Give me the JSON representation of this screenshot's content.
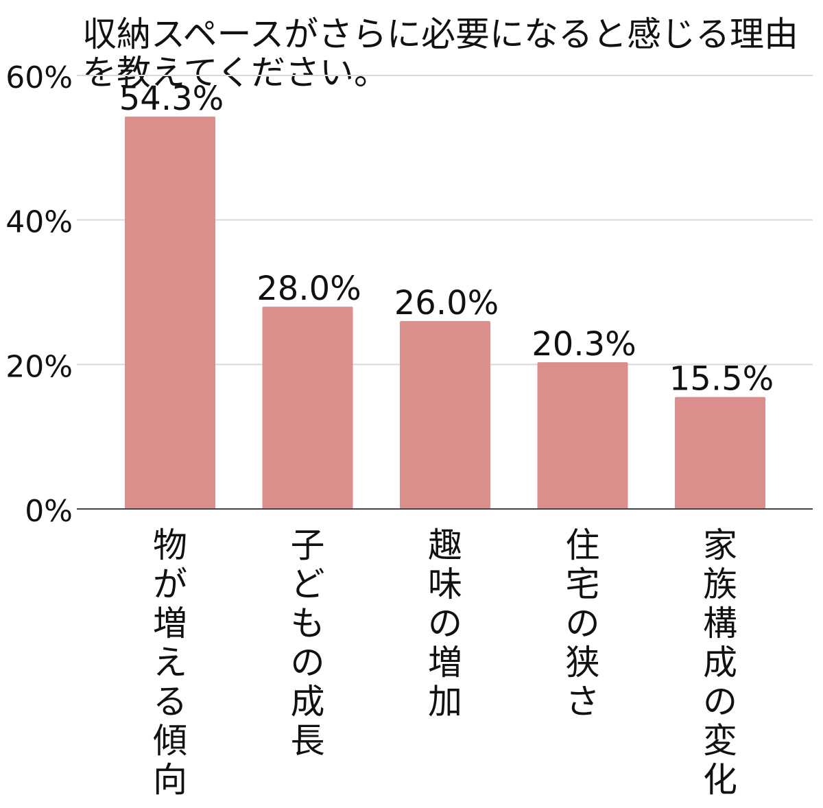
{
  "chart_data": {
    "type": "bar",
    "title": "収納スペースがさらに必要になると感じる理由を教えてください。",
    "categories": [
      "物が増える傾向",
      "子どもの成長",
      "趣味の増加",
      "住宅の狭さ",
      "家族構成の変化"
    ],
    "values": [
      54.3,
      28.0,
      26.0,
      20.3,
      15.5
    ],
    "value_labels": [
      "54.3%",
      "28.0%",
      "26.0%",
      "20.3%",
      "15.5%"
    ],
    "ylim": [
      0,
      60
    ],
    "yticks": [
      0,
      20,
      40,
      60
    ],
    "ytick_labels": [
      "0%",
      "20%",
      "40%",
      "60%"
    ],
    "grid": true,
    "bar_color": "#db8f8d",
    "xlabel": "",
    "ylabel": ""
  }
}
